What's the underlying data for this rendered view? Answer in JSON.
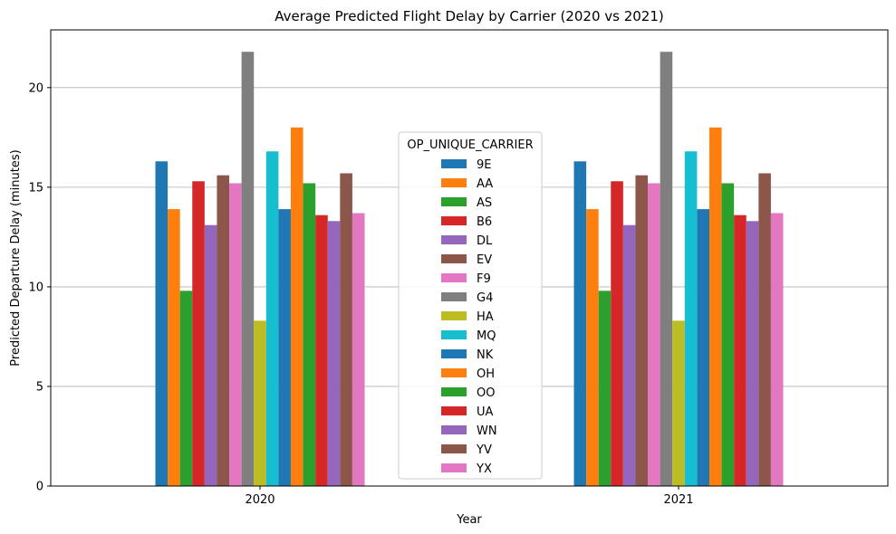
{
  "chart_data": {
    "type": "bar",
    "title": "Average Predicted Flight Delay by Carrier (2020 vs 2021)",
    "xlabel": "Year",
    "ylabel": "Predicted Departure Delay (minutes)",
    "categories": [
      "2020",
      "2021"
    ],
    "ylim": [
      0,
      22.9
    ],
    "yticks": [
      0,
      5,
      10,
      15,
      20
    ],
    "grid": "y",
    "legend": {
      "title": "OP_UNIQUE_CARRIER",
      "placement": "center"
    },
    "series": [
      {
        "name": "9E",
        "color": "#1f77b4",
        "values": [
          16.3,
          16.3
        ]
      },
      {
        "name": "AA",
        "color": "#ff7f0e",
        "values": [
          13.9,
          13.9
        ]
      },
      {
        "name": "AS",
        "color": "#2ca02c",
        "values": [
          9.8,
          9.8
        ]
      },
      {
        "name": "B6",
        "color": "#d62728",
        "values": [
          15.3,
          15.3
        ]
      },
      {
        "name": "DL",
        "color": "#9467bd",
        "values": [
          13.1,
          13.1
        ]
      },
      {
        "name": "EV",
        "color": "#8c564b",
        "values": [
          15.6,
          15.6
        ]
      },
      {
        "name": "F9",
        "color": "#e377c2",
        "values": [
          15.2,
          15.2
        ]
      },
      {
        "name": "G4",
        "color": "#7f7f7f",
        "values": [
          21.8,
          21.8
        ]
      },
      {
        "name": "HA",
        "color": "#bcbd22",
        "values": [
          8.3,
          8.3
        ]
      },
      {
        "name": "MQ",
        "color": "#17becf",
        "values": [
          16.8,
          16.8
        ]
      },
      {
        "name": "NK",
        "color": "#1f77b4",
        "values": [
          13.9,
          13.9
        ]
      },
      {
        "name": "OH",
        "color": "#ff7f0e",
        "values": [
          18.0,
          18.0
        ]
      },
      {
        "name": "OO",
        "color": "#2ca02c",
        "values": [
          15.2,
          15.2
        ]
      },
      {
        "name": "UA",
        "color": "#d62728",
        "values": [
          13.6,
          13.6
        ]
      },
      {
        "name": "WN",
        "color": "#9467bd",
        "values": [
          13.3,
          13.3
        ]
      },
      {
        "name": "YV",
        "color": "#8c564b",
        "values": [
          15.7,
          15.7
        ]
      },
      {
        "name": "YX",
        "color": "#e377c2",
        "values": [
          13.7,
          13.7
        ]
      }
    ]
  }
}
